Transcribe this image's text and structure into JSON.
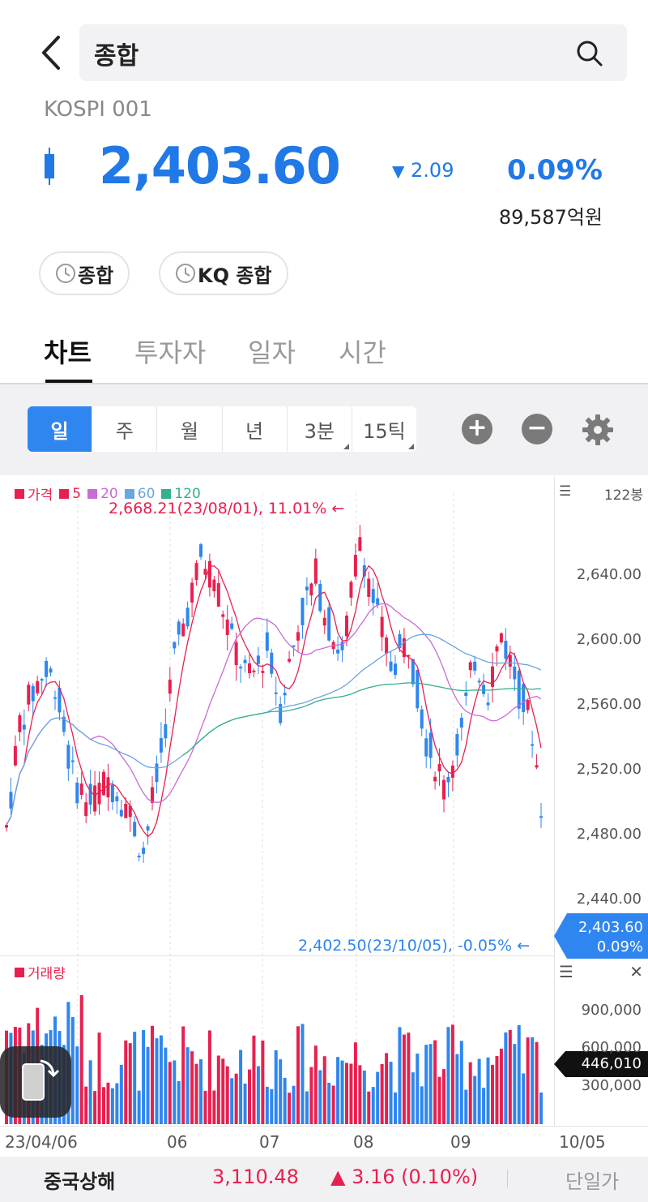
{
  "header": {
    "search_value": "종합"
  },
  "index": {
    "code": "KOSPI 001",
    "price": "2,403.60",
    "change": "2.09",
    "change_pct": "0.09%",
    "trade_amount": "89,587억원",
    "color": "#2079e6"
  },
  "chips": [
    {
      "label": "종합",
      "icon": "clock-icon"
    },
    {
      "label": "KQ 종합",
      "icon": "clock-icon"
    }
  ],
  "tabs": [
    "차트",
    "투자자",
    "일자",
    "시간"
  ],
  "active_tab": "차트",
  "periods": [
    "일",
    "주",
    "월",
    "년",
    "3분",
    "15틱"
  ],
  "active_period": "일",
  "chart_toolbar": {
    "zoom_in": "+",
    "zoom_out": "−"
  },
  "chart_data": {
    "type": "candlestick",
    "legend": [
      {
        "name": "가격",
        "color": "#e8204f"
      },
      {
        "name": "5",
        "color": "#e8204f"
      },
      {
        "name": "20",
        "color": "#c86bd6"
      },
      {
        "name": "60",
        "color": "#6aa6e0"
      },
      {
        "name": "120",
        "color": "#34b08c"
      }
    ],
    "bar_count_label": "122봉",
    "high_annotation": "2,668.21(23/08/01), 11.01%",
    "low_annotation": "2,402.50(23/10/05), -0.05%",
    "y_ticks": [
      "2,640.00",
      "2,600.00",
      "2,560.00",
      "2,520.00",
      "2,480.00",
      "2,440.00"
    ],
    "y_range": [
      2410,
      2690
    ],
    "current_price": "2,403.60",
    "current_pct": "0.09%",
    "x_labels": [
      "23/04/06",
      "06",
      "07",
      "08",
      "09",
      "10/05"
    ],
    "volume": {
      "label": "거래량",
      "y_ticks": [
        "900,000",
        "600,000",
        "300,000"
      ],
      "current": "446,010"
    },
    "up_color": "#e8204f",
    "down_color": "#2f86f0"
  },
  "ticker": {
    "name": "중국상해",
    "price": "3,110.48",
    "change": "▲ 3.16 (0.10%)",
    "mode": "단일가"
  }
}
